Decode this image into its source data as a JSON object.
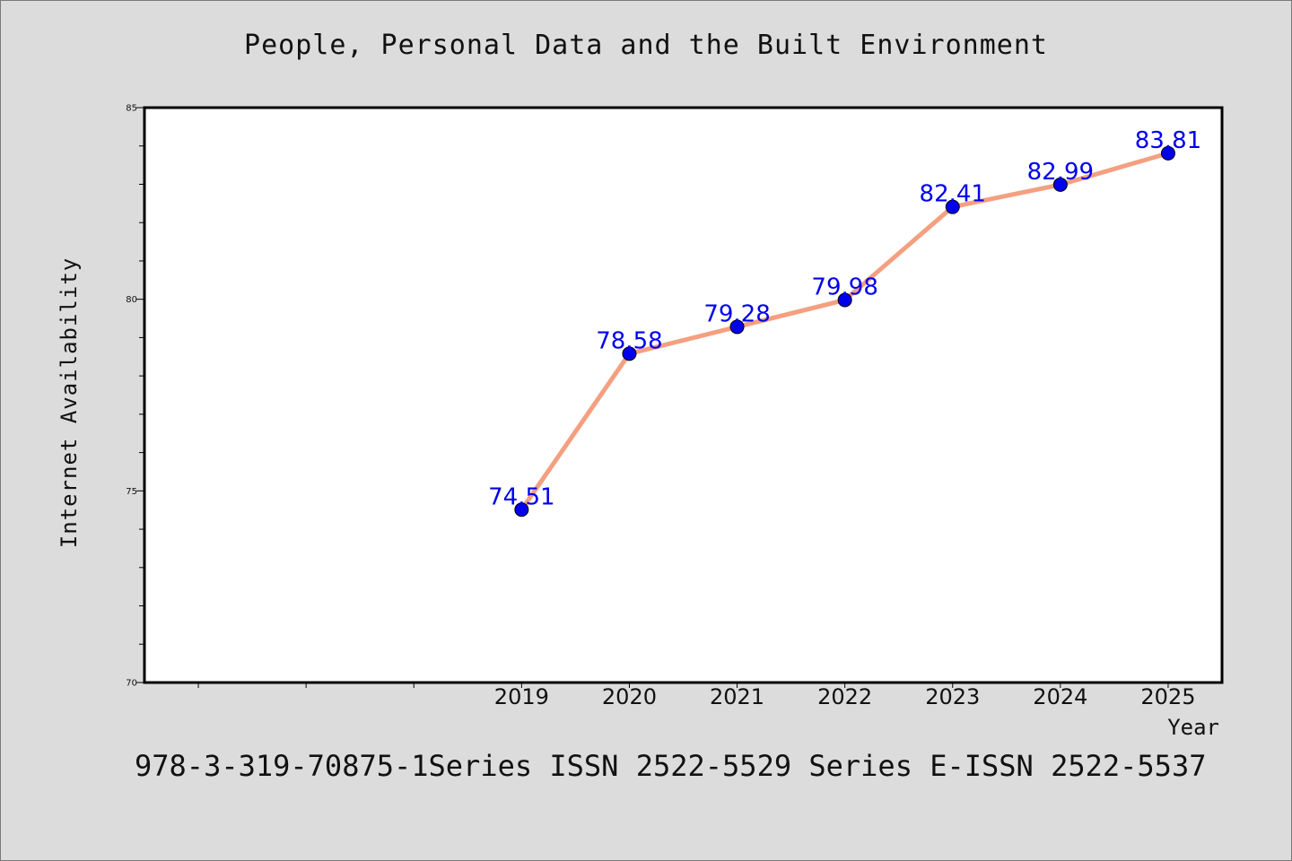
{
  "header": {
    "title": "People, Personal Data and the Built Environment"
  },
  "footer": {
    "note": "978-3-319-70875-1Series ISSN 2522-5529 Series E-ISSN 2522-5537"
  },
  "colors": {
    "background": "#dcdcdc",
    "plot_background": "#ffffff",
    "line": "#f4a080",
    "marker": "#0000ee",
    "data_label": "#0000ee"
  },
  "chart_data": {
    "type": "line",
    "title": "People, Personal Data and the Built Environment",
    "xlabel": "Year",
    "ylabel": "Internet Availability",
    "x": [
      2019,
      2020,
      2021,
      2022,
      2023,
      2024,
      2025
    ],
    "x_tick_labels": [
      "2019",
      "2020",
      "2021",
      "2022",
      "2023",
      "2024",
      "2025"
    ],
    "xlim": [
      2015.5,
      2025.5
    ],
    "ylim": [
      70,
      85
    ],
    "y_major_ticks": [
      70,
      75,
      80,
      85
    ],
    "y_tick_labels": [
      "70",
      "75",
      "80",
      "85"
    ],
    "y_minor_step": 1,
    "series": [
      {
        "values": [
          74.51,
          78.58,
          79.28,
          79.98,
          82.41,
          82.99,
          83.81
        ],
        "data_labels": [
          "74.51",
          "78.58",
          "79.28",
          "79.98",
          "82.41",
          "82.99",
          "83.81"
        ]
      }
    ],
    "grid": false,
    "legend": "none"
  }
}
